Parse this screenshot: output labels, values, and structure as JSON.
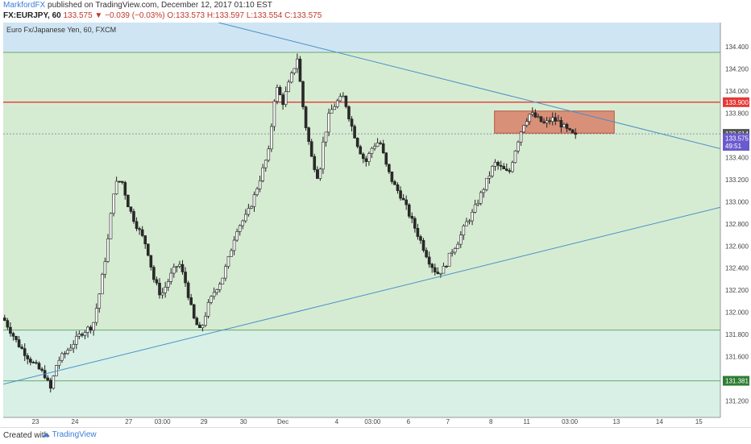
{
  "header": {
    "author": "MarkfordFX",
    "published": "published on TradingView.com, December 12, 2017 01:10 EST",
    "symbol": "FX:EURJPY, 60",
    "last": "133.575",
    "change": "▼ −0.039 (−0.03%)",
    "open": "O:133.573",
    "high": "H:133.597",
    "low": "L:133.554",
    "close": "C:133.575"
  },
  "legend": "Euro Fx/Japanese Yen, 60, FXCM",
  "footer": {
    "created_with": "Created with",
    "brand": "TradingView"
  },
  "colors": {
    "up": "#2e3d2e",
    "down": "#4a3a2a",
    "hline": "#e53935",
    "trend": "#4a90c8",
    "zone_fill": "#d98068",
    "green_zone": "#d6ecd2",
    "teal_zone": "#d8f0e6",
    "blue_zone": "#cfe5f3"
  },
  "chart_data": {
    "type": "candlestick",
    "title": "Euro Fx/Japanese Yen, 60, FXCM",
    "ylim": [
      131.05,
      134.62
    ],
    "y_ticks": [
      "134.400",
      "134.200",
      "134.000",
      "133.800",
      "133.600",
      "133.400",
      "133.200",
      "133.000",
      "132.800",
      "132.600",
      "132.400",
      "132.200",
      "132.000",
      "131.800",
      "131.600",
      "131.400",
      "131.200"
    ],
    "x_ticks": [
      "23",
      "24",
      "27",
      "03:00",
      "29",
      "30",
      "Dec",
      "4",
      "03:00",
      "6",
      "7",
      "8",
      "11",
      "03:00",
      "13",
      "14",
      "15"
    ],
    "price_labels": [
      {
        "text": "133.900",
        "value": 133.9,
        "color": "#e53935"
      },
      {
        "text": "133.614",
        "value": 133.614,
        "color": "#555555"
      },
      {
        "text": "133.575",
        "value": 133.575,
        "color": "#6a5acd"
      },
      {
        "text": "49:51",
        "value": 133.505,
        "color": "#6a5acd"
      },
      {
        "text": "131.381",
        "value": 131.381,
        "color": "#2e7d32"
      }
    ],
    "horizontal_lines": [
      {
        "value": 133.9,
        "color": "#e53935"
      },
      {
        "value": 134.35,
        "color": "#6aa86a"
      },
      {
        "value": 131.84,
        "color": "#6aa86a"
      },
      {
        "value": 131.381,
        "color": "#6aa86a"
      },
      {
        "value": 133.614,
        "color": "#8899aa",
        "dashed": true
      }
    ],
    "zones": [
      {
        "from": 134.35,
        "to": 134.62,
        "color": "#cfe5f3"
      },
      {
        "from": 131.84,
        "to": 134.35,
        "color": "#d6ecd2"
      },
      {
        "from": 131.05,
        "to": 131.84,
        "color": "#d8f0e6"
      }
    ],
    "rectangle": {
      "x_from": 0.685,
      "x_to": 0.852,
      "from": 133.62,
      "to": 133.82
    },
    "trendlines": [
      {
        "x1": 0.0,
        "y1": 131.35,
        "x2": 1.0,
        "y2": 132.95
      },
      {
        "x1": 0.3,
        "y1": 134.62,
        "x2": 1.0,
        "y2": 133.48
      }
    ],
    "price_path": [
      [
        0.0,
        131.95
      ],
      [
        0.02,
        131.72
      ],
      [
        0.04,
        131.55
      ],
      [
        0.06,
        131.42
      ],
      [
        0.065,
        131.28
      ],
      [
        0.075,
        131.55
      ],
      [
        0.085,
        131.62
      ],
      [
        0.1,
        131.74
      ],
      [
        0.11,
        131.82
      ],
      [
        0.125,
        131.88
      ],
      [
        0.135,
        132.2
      ],
      [
        0.145,
        132.6
      ],
      [
        0.155,
        133.15
      ],
      [
        0.165,
        133.2
      ],
      [
        0.175,
        132.95
      ],
      [
        0.185,
        132.8
      ],
      [
        0.2,
        132.6
      ],
      [
        0.21,
        132.3
      ],
      [
        0.22,
        132.15
      ],
      [
        0.235,
        132.35
      ],
      [
        0.245,
        132.45
      ],
      [
        0.255,
        132.25
      ],
      [
        0.265,
        131.95
      ],
      [
        0.275,
        131.82
      ],
      [
        0.285,
        132.05
      ],
      [
        0.295,
        132.2
      ],
      [
        0.305,
        132.3
      ],
      [
        0.315,
        132.5
      ],
      [
        0.325,
        132.75
      ],
      [
        0.34,
        132.88
      ],
      [
        0.35,
        133.05
      ],
      [
        0.36,
        133.25
      ],
      [
        0.37,
        133.45
      ],
      [
        0.38,
        134.05
      ],
      [
        0.39,
        133.9
      ],
      [
        0.4,
        134.1
      ],
      [
        0.41,
        134.3
      ],
      [
        0.42,
        133.75
      ],
      [
        0.43,
        133.4
      ],
      [
        0.44,
        133.2
      ],
      [
        0.445,
        133.5
      ],
      [
        0.455,
        133.8
      ],
      [
        0.465,
        133.9
      ],
      [
        0.475,
        133.95
      ],
      [
        0.485,
        133.7
      ],
      [
        0.495,
        133.5
      ],
      [
        0.505,
        133.35
      ],
      [
        0.515,
        133.5
      ],
      [
        0.525,
        133.55
      ],
      [
        0.535,
        133.3
      ],
      [
        0.545,
        133.15
      ],
      [
        0.555,
        133.05
      ],
      [
        0.565,
        132.9
      ],
      [
        0.575,
        132.75
      ],
      [
        0.585,
        132.6
      ],
      [
        0.595,
        132.45
      ],
      [
        0.605,
        132.35
      ],
      [
        0.615,
        132.4
      ],
      [
        0.625,
        132.55
      ],
      [
        0.635,
        132.65
      ],
      [
        0.645,
        132.8
      ],
      [
        0.655,
        132.9
      ],
      [
        0.665,
        133.05
      ],
      [
        0.675,
        133.2
      ],
      [
        0.685,
        133.35
      ],
      [
        0.695,
        133.3
      ],
      [
        0.705,
        133.25
      ],
      [
        0.715,
        133.5
      ],
      [
        0.725,
        133.7
      ],
      [
        0.735,
        133.8
      ],
      [
        0.745,
        133.75
      ],
      [
        0.755,
        133.7
      ],
      [
        0.765,
        133.75
      ],
      [
        0.775,
        133.72
      ],
      [
        0.785,
        133.65
      ],
      [
        0.795,
        133.6
      ],
      [
        0.8,
        133.58
      ]
    ]
  }
}
